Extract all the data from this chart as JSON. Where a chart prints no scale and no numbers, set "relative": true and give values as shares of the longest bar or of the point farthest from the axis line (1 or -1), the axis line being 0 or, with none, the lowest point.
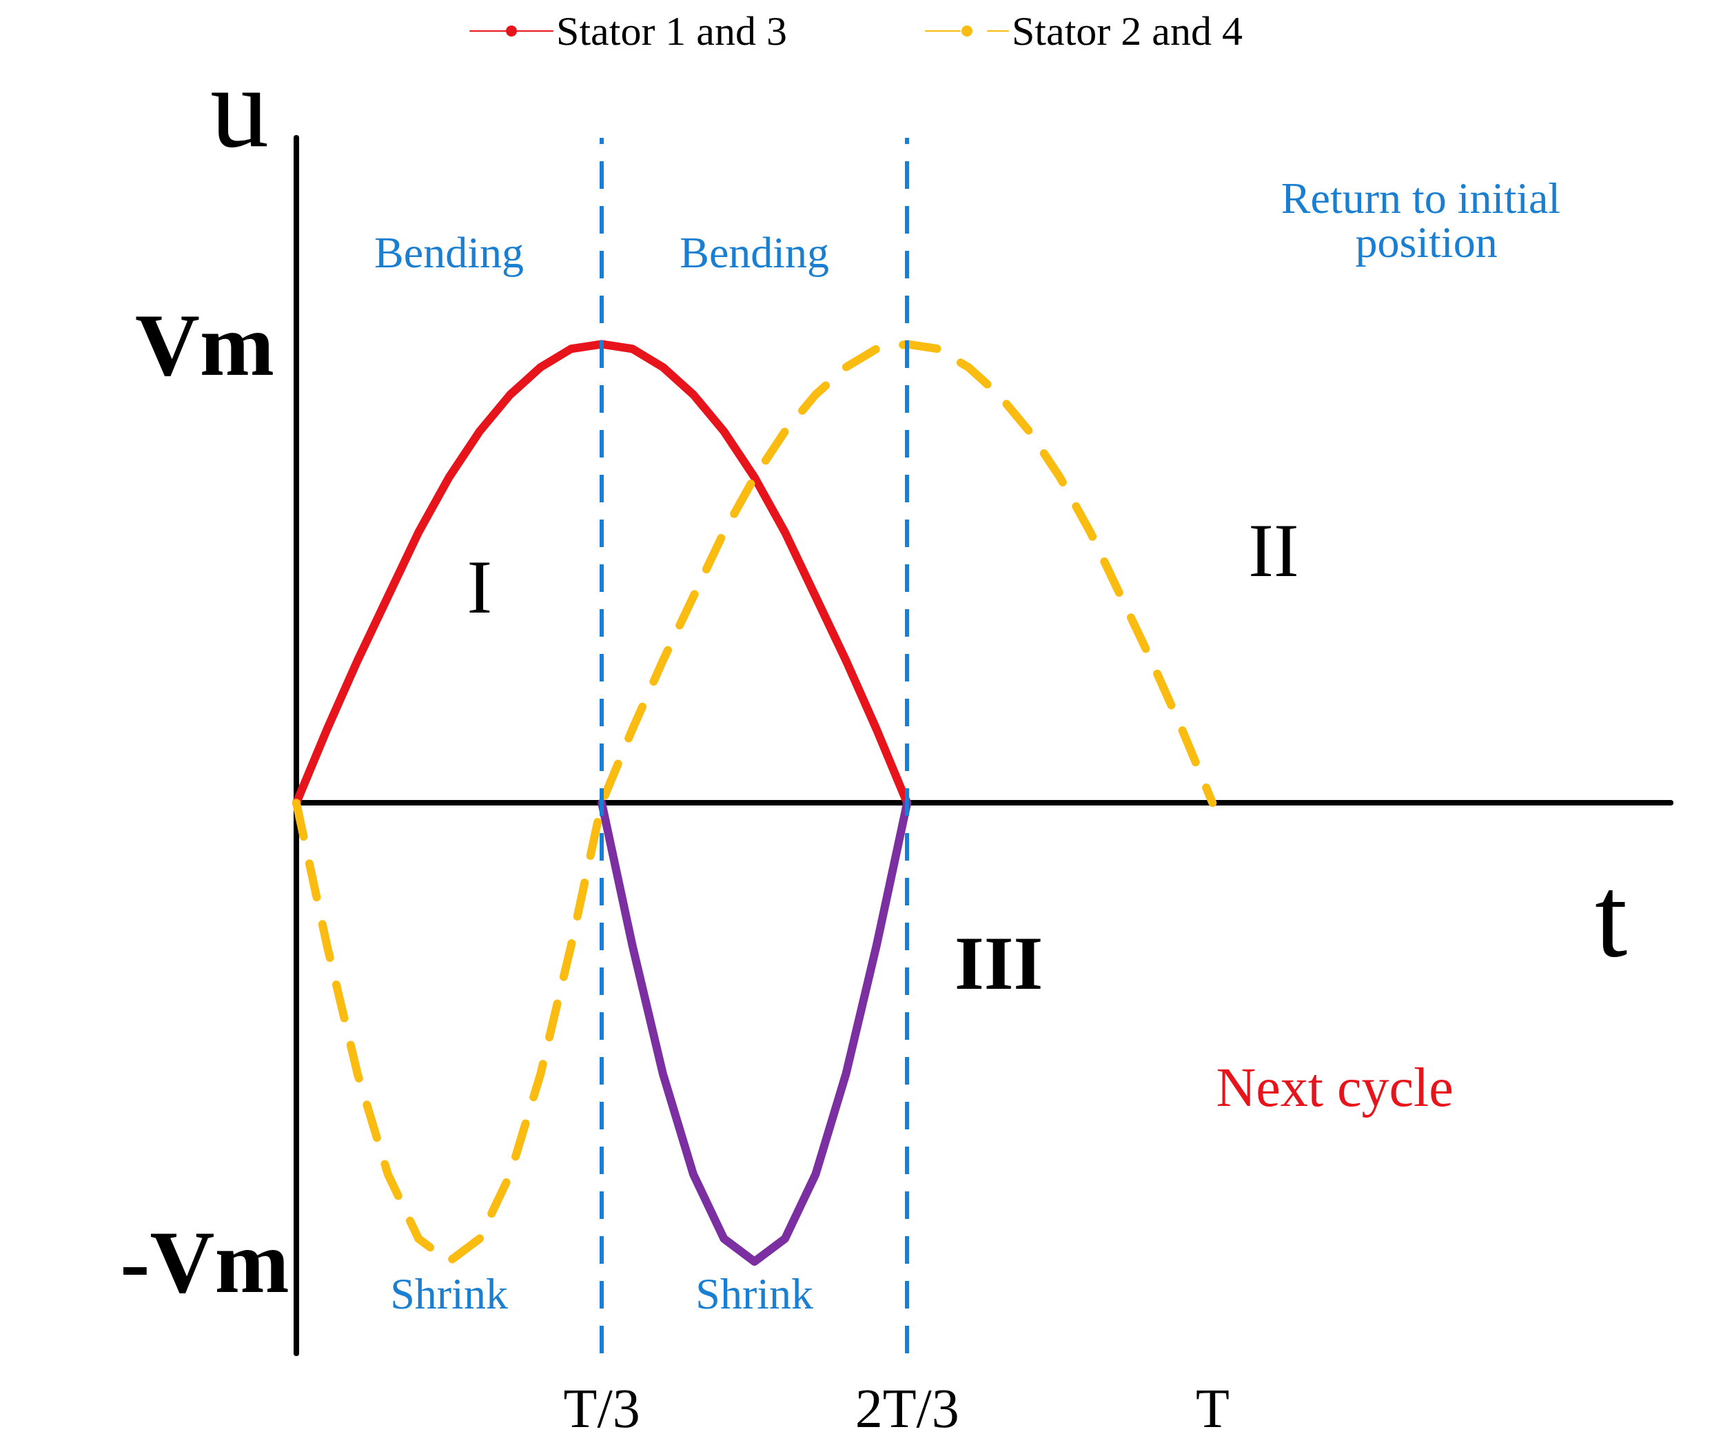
{
  "chart_data": {
    "type": "line",
    "xlabel": "t",
    "ylabel": "u",
    "relative": true,
    "categories": [
      null,
      null,
      null,
      null,
      null,
      null,
      null,
      null,
      null,
      null,
      "T/3",
      null,
      null,
      null,
      null,
      null,
      null,
      null,
      null,
      null,
      "2T/3",
      null,
      null,
      null,
      null,
      null,
      null,
      null,
      null,
      null,
      "T",
      null,
      null,
      null,
      null,
      null,
      null,
      null,
      null,
      null,
      null,
      null,
      null,
      null,
      null,
      null
    ],
    "series": [
      {
        "name": "Stator 1 and 3",
        "color": "#e8141b",
        "values": [
          0,
          0.16,
          0.31,
          0.45,
          0.59,
          0.71,
          0.81,
          0.89,
          0.95,
          0.99,
          1,
          0.99,
          0.95,
          0.89,
          0.81,
          0.71,
          0.59,
          0.45,
          0.31,
          0.16,
          0,
          null,
          null,
          null,
          null,
          null,
          null,
          null,
          null,
          null,
          null,
          null,
          null,
          null,
          null,
          null,
          null,
          null,
          null,
          null,
          null,
          null,
          null,
          null,
          null,
          null
        ]
      },
      {
        "color": "#7b2fa0",
        "values": [
          null,
          null,
          null,
          null,
          null,
          null,
          null,
          null,
          null,
          null,
          0,
          -0.31,
          -0.59,
          -0.81,
          -0.95,
          -1,
          -0.95,
          -0.81,
          -0.59,
          -0.31,
          0,
          null,
          null,
          null,
          null,
          null,
          null,
          null,
          null,
          null,
          null,
          null,
          null,
          null,
          null,
          null,
          null,
          null,
          null,
          null,
          null,
          null,
          null,
          null,
          null,
          null
        ]
      },
      {
        "name": "Stator 2 and 4",
        "color": "#fbbc12",
        "line_style": "dashed",
        "values": [
          0,
          -0.31,
          -0.59,
          -0.81,
          -0.95,
          -1,
          -0.95,
          -0.81,
          -0.59,
          -0.31,
          0,
          0.16,
          0.31,
          0.45,
          0.59,
          0.71,
          0.81,
          0.89,
          0.95,
          0.99,
          1,
          0.99,
          0.95,
          0.89,
          0.81,
          0.71,
          0.59,
          0.45,
          0.31,
          0.16,
          0,
          null,
          null,
          null,
          null,
          null,
          null,
          null,
          null,
          null,
          null,
          null,
          null,
          null,
          null,
          null
        ]
      }
    ],
    "ref_lines": [
      {
        "axis": "x",
        "value": "T/3",
        "color": "#1a7fd0",
        "line_style": "dashed"
      },
      {
        "axis": "x",
        "value": "2T/3",
        "color": "#1a7fd0",
        "line_style": "dashed"
      }
    ],
    "annotations": [
      "Vm",
      "-Vm",
      "Bending",
      "Bending",
      "Shrink",
      "Shrink",
      "Return to initial position",
      "I",
      "II",
      "III",
      "Next cycle"
    ],
    "grid": false,
    "legend": "top",
    "marker": "none"
  }
}
